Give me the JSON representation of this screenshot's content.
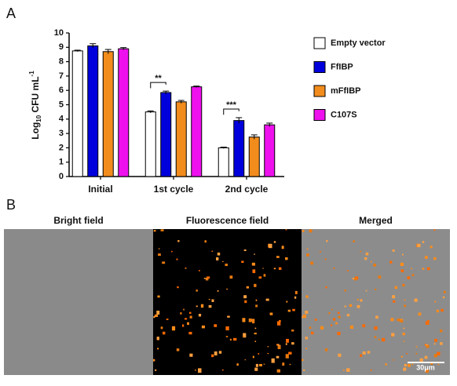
{
  "panel_labels": [
    "A",
    "B"
  ],
  "chart_data": {
    "type": "bar",
    "y_label": {
      "base": "Log",
      "sub": "10",
      "unit": " CFU  mL",
      "sup": "-1"
    },
    "categories": [
      "Initial",
      "1st cycle",
      "2nd cycle"
    ],
    "series": [
      {
        "name": "Empty vector",
        "color": "#ffffff",
        "values": [
          8.75,
          4.5,
          2.0
        ],
        "errors": [
          0.05,
          0.07,
          0.05
        ]
      },
      {
        "name": "FfIBP",
        "color": "#0000dd",
        "values": [
          9.1,
          5.85,
          3.9
        ],
        "errors": [
          0.15,
          0.1,
          0.2
        ]
      },
      {
        "name": "mFfIBP",
        "color": "#f28c1c",
        "values": [
          8.7,
          5.2,
          2.75
        ],
        "errors": [
          0.15,
          0.1,
          0.15
        ]
      },
      {
        "name": "C107S",
        "color": "#ee11ee",
        "values": [
          8.9,
          6.25,
          3.6
        ],
        "errors": [
          0.08,
          0.05,
          0.12
        ]
      }
    ],
    "annotations": [
      "**",
      "***"
    ],
    "ylim": [
      0,
      10
    ],
    "yticks": [
      0,
      1,
      2,
      3,
      4,
      5,
      6,
      7,
      8,
      9,
      10
    ]
  },
  "images": {
    "titles": [
      "Bright field",
      "Fluorescence field",
      "Merged"
    ],
    "scale_bar": "30μm"
  }
}
